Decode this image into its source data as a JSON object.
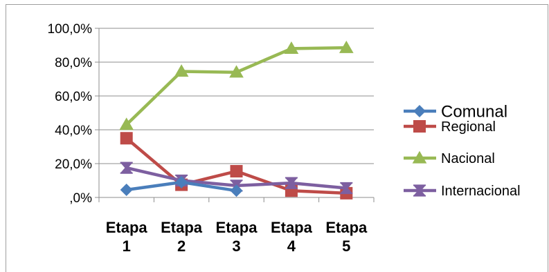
{
  "chart_data": {
    "type": "line",
    "categories": [
      [
        "Etapa",
        "1"
      ],
      [
        "Etapa",
        "2"
      ],
      [
        "Etapa",
        "3"
      ],
      [
        "Etapa",
        "4"
      ],
      [
        "Etapa",
        "5"
      ]
    ],
    "y_tick_labels": [
      ",0%",
      "20,0%",
      "40,0%",
      "60,0%",
      "80,0%",
      "100,0%"
    ],
    "ylim": [
      0,
      100
    ],
    "grid": true,
    "legend_position": "right",
    "series": [
      {
        "name": "Comunal",
        "values": [
          4.5,
          9.0,
          4.0,
          null,
          null
        ],
        "color": "#4a7ebb",
        "marker": "diamond"
      },
      {
        "name": "Regional",
        "values": [
          35.0,
          7.5,
          15.5,
          4.0,
          2.5
        ],
        "color": "#be4b48",
        "marker": "square"
      },
      {
        "name": "Nacional",
        "values": [
          43.0,
          74.5,
          74.0,
          88.0,
          88.5
        ],
        "color": "#98b954",
        "marker": "triangle"
      },
      {
        "name": "Internacional",
        "values": [
          17.5,
          10.0,
          7.0,
          8.5,
          5.5
        ],
        "color": "#7d5fa0",
        "marker": "star"
      }
    ]
  }
}
